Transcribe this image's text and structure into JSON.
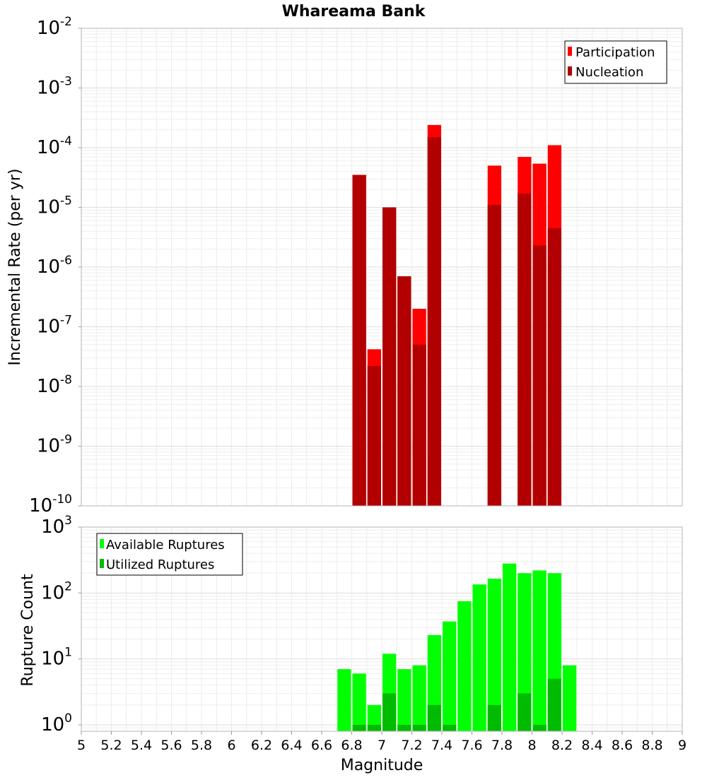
{
  "chart_data": [
    {
      "type": "bar",
      "title": "Whareama Bank",
      "xlabel": "",
      "ylabel": "Incremental Rate (per yr)",
      "xlim": [
        5,
        9
      ],
      "ylim": [
        1e-10,
        0.01
      ],
      "yscale": "log",
      "grid": true,
      "legend_position": "top-right",
      "bin_width": 0.1,
      "x": [
        6.85,
        6.95,
        7.05,
        7.15,
        7.25,
        7.35,
        7.75,
        7.95,
        8.05,
        8.15
      ],
      "series": [
        {
          "name": "Participation",
          "color": "#ff0000",
          "values": [
            3.5e-05,
            4.2e-08,
            1e-05,
            7e-07,
            2e-07,
            0.00024,
            5e-05,
            7e-05,
            5.4e-05,
            0.00011
          ]
        },
        {
          "name": "Nucleation",
          "color": "#b20000",
          "values": [
            3.5e-05,
            2.2e-08,
            1e-05,
            7e-07,
            5e-08,
            0.00015,
            1.1e-05,
            1.7e-05,
            2.3e-06,
            4.5e-06
          ]
        }
      ],
      "y_ticks": [
        {
          "base": "10",
          "exp": "-10",
          "value": 1e-10
        },
        {
          "base": "10",
          "exp": "-9",
          "value": 1e-09
        },
        {
          "base": "10",
          "exp": "-8",
          "value": 1e-08
        },
        {
          "base": "10",
          "exp": "-7",
          "value": 1e-07
        },
        {
          "base": "10",
          "exp": "-6",
          "value": 1e-06
        },
        {
          "base": "10",
          "exp": "-5",
          "value": 1e-05
        },
        {
          "base": "10",
          "exp": "-4",
          "value": 0.0001
        },
        {
          "base": "10",
          "exp": "-3",
          "value": 0.001
        },
        {
          "base": "10",
          "exp": "-2",
          "value": 0.01
        }
      ]
    },
    {
      "type": "bar",
      "title": "",
      "xlabel": "Magnitude",
      "ylabel": "Rupture Count",
      "xlim": [
        5,
        9
      ],
      "ylim": [
        0.8,
        1000
      ],
      "yscale": "log",
      "grid": true,
      "legend_position": "top-left",
      "bin_width": 0.1,
      "x": [
        6.75,
        6.85,
        6.95,
        7.05,
        7.15,
        7.25,
        7.35,
        7.45,
        7.55,
        7.65,
        7.75,
        7.85,
        7.95,
        8.05,
        8.15,
        8.25
      ],
      "series": [
        {
          "name": "Available Ruptures",
          "color": "#00ff00",
          "values": [
            7,
            6,
            2,
            12,
            7,
            8,
            23,
            37,
            75,
            135,
            165,
            280,
            200,
            220,
            200,
            8
          ]
        },
        {
          "name": "Utilized Ruptures",
          "color": "#00bb00",
          "values": [
            0,
            1,
            1,
            3,
            1,
            1,
            2,
            1,
            0,
            0,
            2,
            0,
            3,
            1,
            5,
            0
          ]
        }
      ],
      "x_ticks": [
        "5",
        "5.2",
        "5.4",
        "5.6",
        "5.8",
        "6",
        "6.2",
        "6.4",
        "6.6",
        "6.8",
        "7",
        "7.2",
        "7.4",
        "7.6",
        "7.8",
        "8",
        "8.2",
        "8.4",
        "8.6",
        "8.8",
        "9"
      ],
      "y_ticks": [
        {
          "base": "10",
          "exp": "0",
          "value": 1
        },
        {
          "base": "10",
          "exp": "1",
          "value": 10
        },
        {
          "base": "10",
          "exp": "2",
          "value": 100
        },
        {
          "base": "10",
          "exp": "3",
          "value": 1000
        }
      ]
    }
  ]
}
